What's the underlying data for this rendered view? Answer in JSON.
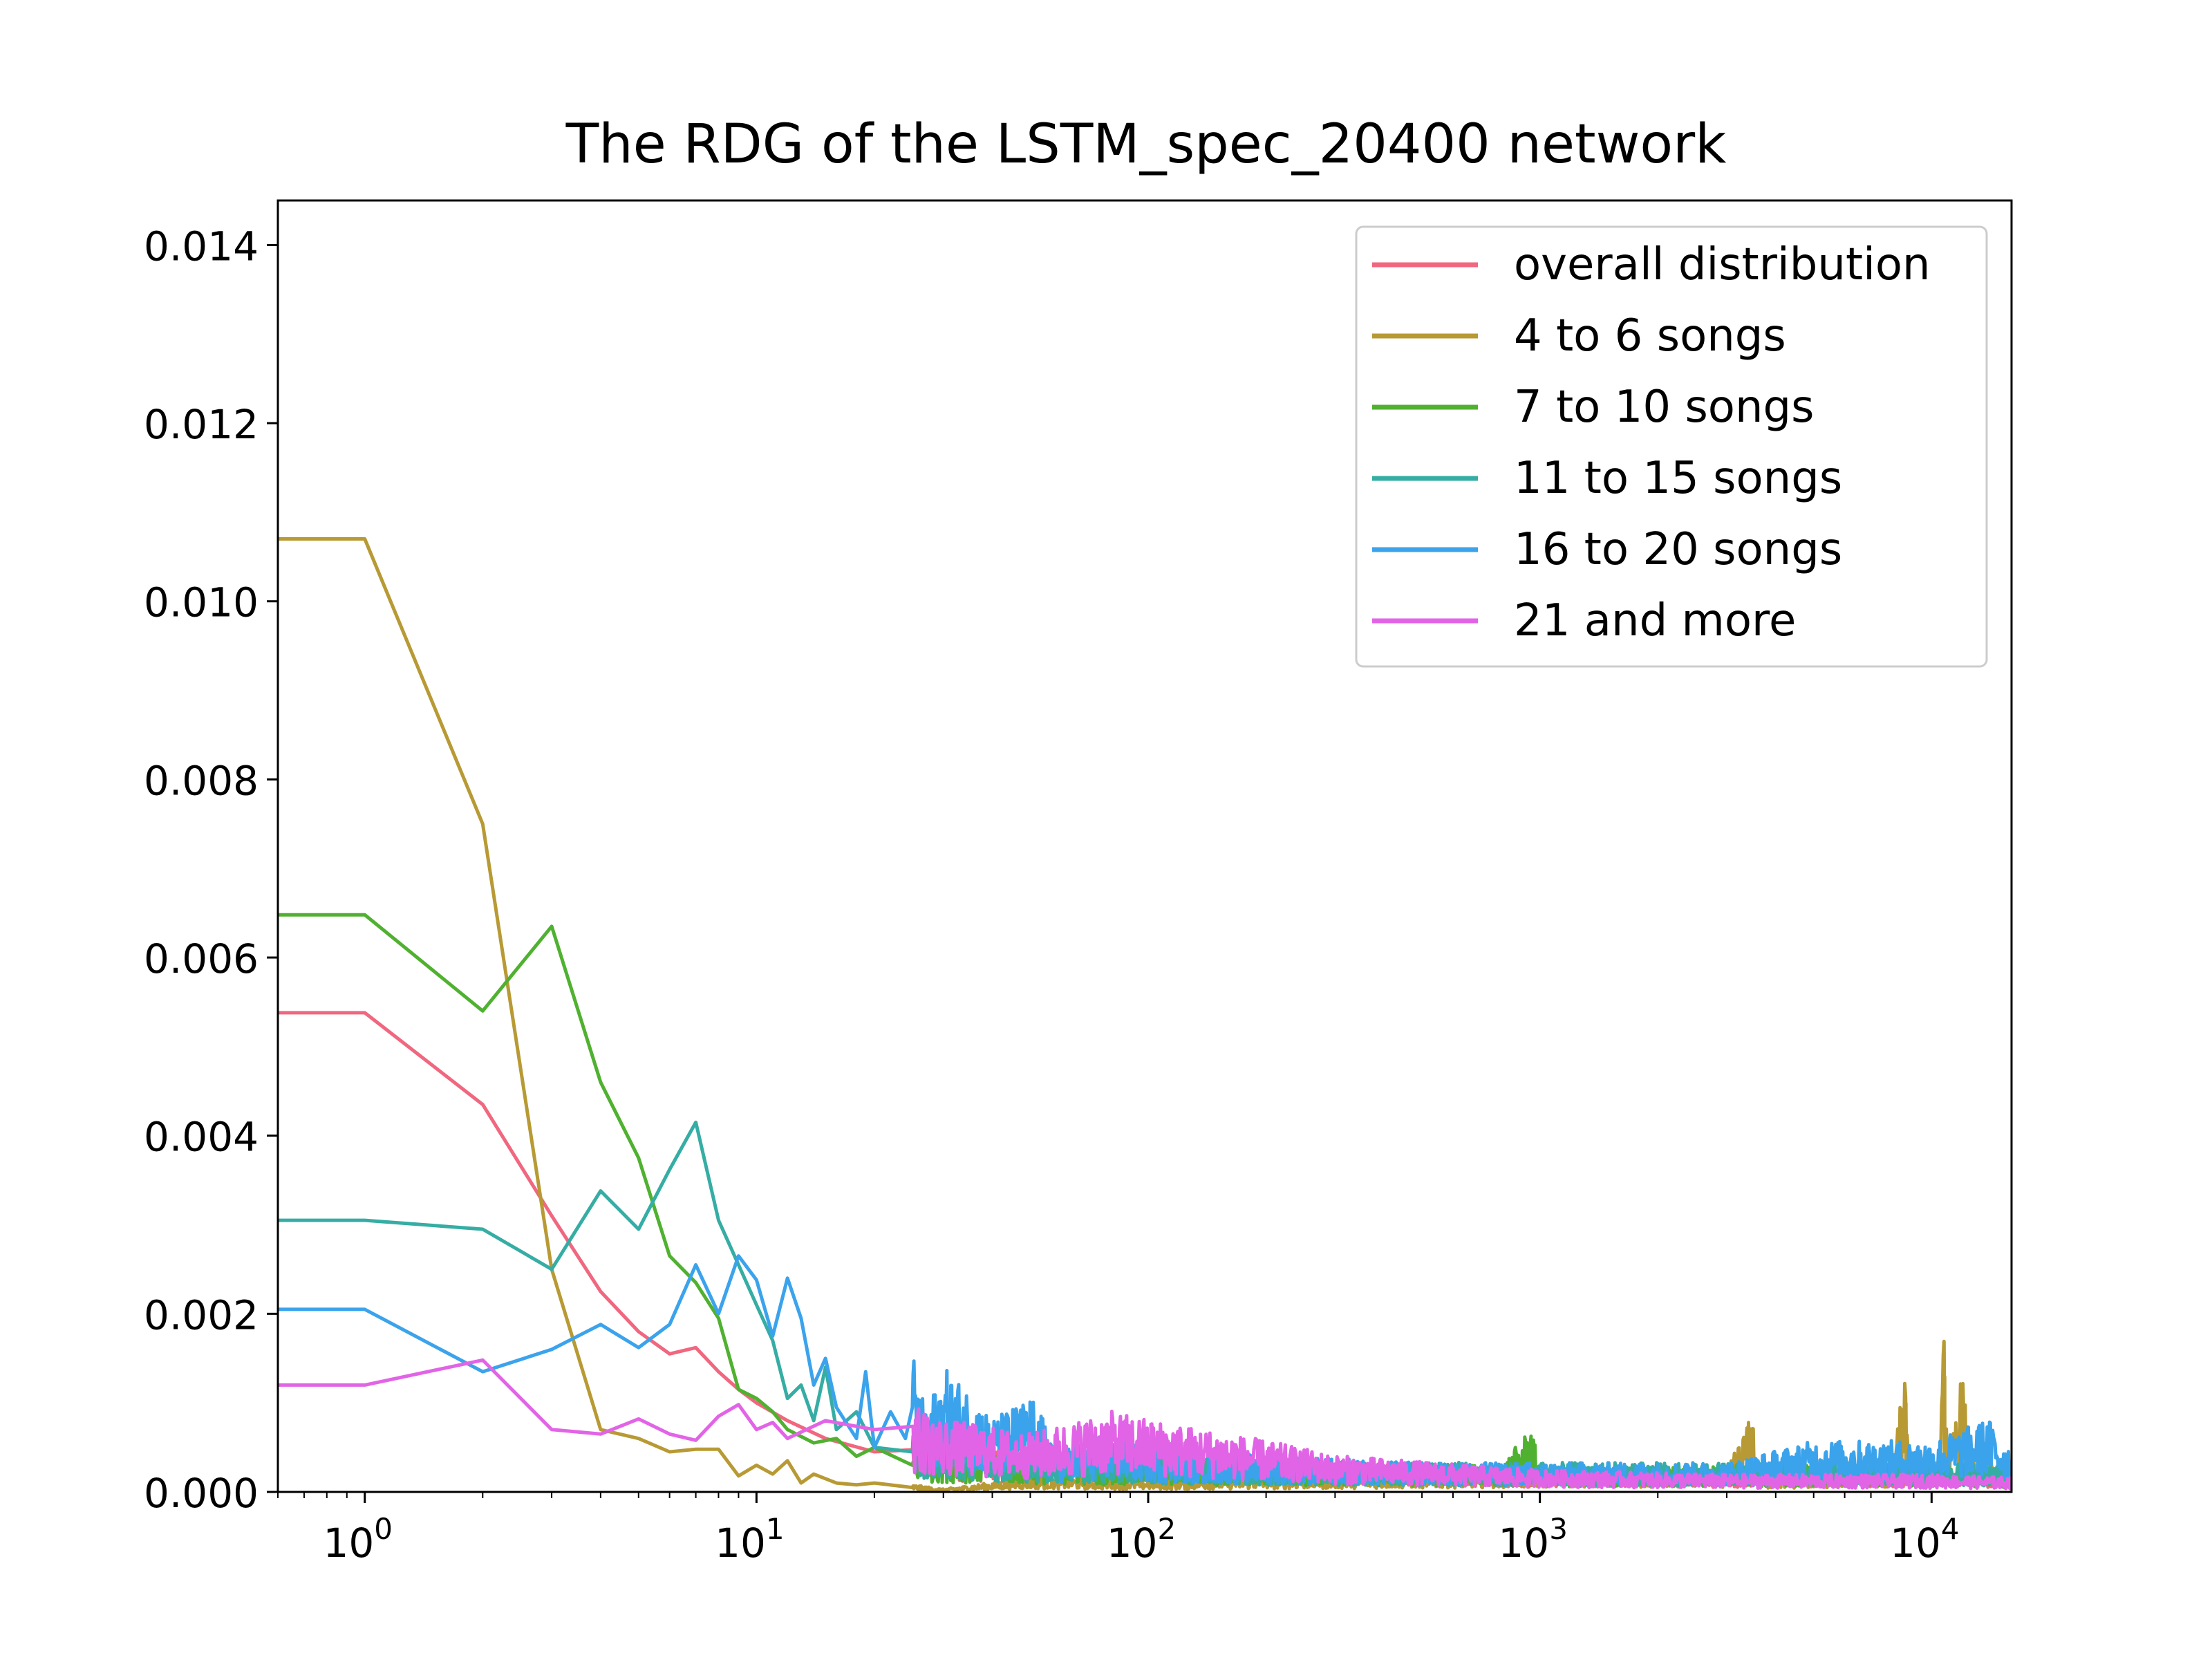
{
  "chart_data": {
    "type": "line",
    "title": "The RDG of the LSTM_spec_20400 network",
    "xlabel": "",
    "ylabel": "",
    "xscale": "log",
    "xlim": [
      0.6,
      16000
    ],
    "ylim": [
      0,
      0.0145
    ],
    "xticks": [
      {
        "value": 1,
        "base": "10",
        "exp": "0"
      },
      {
        "value": 10,
        "base": "10",
        "exp": "1"
      },
      {
        "value": 100,
        "base": "10",
        "exp": "2"
      },
      {
        "value": 1000,
        "base": "10",
        "exp": "3"
      },
      {
        "value": 10000,
        "base": "10",
        "exp": "4"
      }
    ],
    "yticks": [
      {
        "value": 0.0,
        "label": "0.000"
      },
      {
        "value": 0.002,
        "label": "0.002"
      },
      {
        "value": 0.004,
        "label": "0.004"
      },
      {
        "value": 0.006,
        "label": "0.006"
      },
      {
        "value": 0.008,
        "label": "0.008"
      },
      {
        "value": 0.01,
        "label": "0.010"
      },
      {
        "value": 0.012,
        "label": "0.012"
      },
      {
        "value": 0.014,
        "label": "0.014"
      }
    ],
    "grid": false,
    "legend_position": "top-right",
    "series": [
      {
        "name": "overall distribution",
        "color": "#f0677f",
        "points": [
          [
            0.6,
            0.00538
          ],
          [
            1,
            0.00538
          ],
          [
            2,
            0.00435
          ],
          [
            3,
            0.0031
          ],
          [
            4,
            0.00225
          ],
          [
            5,
            0.0018
          ],
          [
            6,
            0.00155
          ],
          [
            7,
            0.00162
          ],
          [
            8,
            0.00135
          ],
          [
            9,
            0.00115
          ],
          [
            10,
            0.001
          ],
          [
            12,
            0.0008
          ],
          [
            15,
            0.0006
          ],
          [
            20,
            0.00045
          ],
          [
            30,
            0.00035
          ],
          [
            50,
            0.0003
          ],
          [
            100,
            0.00025
          ],
          [
            300,
            0.0002
          ],
          [
            1000,
            0.00015
          ],
          [
            3000,
            0.00015
          ],
          [
            10000,
            0.00015
          ],
          [
            16000,
            0.00015
          ]
        ]
      },
      {
        "name": "4 to 6 songs",
        "color": "#b89a35",
        "points": [
          [
            0.6,
            0.0107
          ],
          [
            1,
            0.0107
          ],
          [
            2,
            0.0075
          ],
          [
            3,
            0.0025
          ],
          [
            4,
            0.0007
          ],
          [
            5,
            0.0006
          ],
          [
            6,
            0.00045
          ],
          [
            7,
            0.00048
          ],
          [
            8,
            0.00048
          ],
          [
            9,
            0.00018
          ],
          [
            10,
            0.0003
          ],
          [
            11,
            0.0002
          ],
          [
            12,
            0.00035
          ],
          [
            13,
            0.0001
          ],
          [
            14,
            0.0002
          ],
          [
            16,
            0.0001
          ],
          [
            18,
            8e-05
          ],
          [
            20,
            0.0001
          ],
          [
            25,
            5e-05
          ],
          [
            30,
            2e-05
          ],
          [
            50,
            0.0001
          ],
          [
            100,
            8e-05
          ],
          [
            500,
            0.00012
          ],
          [
            1000,
            0.00015
          ],
          [
            3000,
            0.00015
          ],
          [
            3500,
            0.00055
          ],
          [
            3600,
            0.0001
          ],
          [
            8000,
            0.00015
          ],
          [
            8600,
            0.001
          ],
          [
            8800,
            0.0002
          ],
          [
            10500,
            0.0002
          ],
          [
            10800,
            0.0013
          ],
          [
            11000,
            0.00015
          ],
          [
            12000,
            0.00085
          ],
          [
            12500,
            0.0002
          ],
          [
            16000,
            0.00015
          ]
        ]
      },
      {
        "name": "7 to 10 songs",
        "color": "#50b131",
        "points": [
          [
            0.6,
            0.00648
          ],
          [
            1,
            0.00648
          ],
          [
            2,
            0.0054
          ],
          [
            3,
            0.00635
          ],
          [
            4,
            0.0046
          ],
          [
            5,
            0.00375
          ],
          [
            6,
            0.00265
          ],
          [
            7,
            0.00235
          ],
          [
            8,
            0.00195
          ],
          [
            9,
            0.00115
          ],
          [
            10,
            0.00105
          ],
          [
            11,
            0.0009
          ],
          [
            12,
            0.0007
          ],
          [
            14,
            0.00055
          ],
          [
            16,
            0.0006
          ],
          [
            18,
            0.0004
          ],
          [
            20,
            0.0005
          ],
          [
            25,
            0.0003
          ],
          [
            30,
            0.0003
          ],
          [
            50,
            0.00025
          ],
          [
            100,
            0.00022
          ],
          [
            300,
            0.0002
          ],
          [
            800,
            0.00018
          ],
          [
            950,
            0.00045
          ],
          [
            1000,
            0.00015
          ],
          [
            3000,
            0.00018
          ],
          [
            10000,
            0.00018
          ],
          [
            16000,
            0.00015
          ]
        ]
      },
      {
        "name": "11 to 15 songs",
        "color": "#36ada4",
        "points": [
          [
            0.6,
            0.00305
          ],
          [
            1,
            0.00305
          ],
          [
            2,
            0.00295
          ],
          [
            3,
            0.0025
          ],
          [
            4,
            0.00338
          ],
          [
            5,
            0.00295
          ],
          [
            6,
            0.00362
          ],
          [
            7,
            0.00415
          ],
          [
            8,
            0.00305
          ],
          [
            9,
            0.00255
          ],
          [
            10,
            0.0021
          ],
          [
            11,
            0.0017
          ],
          [
            12,
            0.00105
          ],
          [
            13,
            0.0012
          ],
          [
            14,
            0.0008
          ],
          [
            15,
            0.0014
          ],
          [
            16,
            0.0007
          ],
          [
            18,
            0.0009
          ],
          [
            20,
            0.0005
          ],
          [
            25,
            0.00045
          ],
          [
            30,
            0.0004
          ],
          [
            50,
            0.0003
          ],
          [
            100,
            0.00025
          ],
          [
            300,
            0.0002
          ],
          [
            1000,
            0.0002
          ],
          [
            3000,
            0.0002
          ],
          [
            10000,
            0.0002
          ],
          [
            16000,
            0.00018
          ]
        ]
      },
      {
        "name": "16 to 20 songs",
        "color": "#3ba3ec",
        "points": [
          [
            0.6,
            0.00205
          ],
          [
            1,
            0.00205
          ],
          [
            2,
            0.00135
          ],
          [
            3,
            0.0016
          ],
          [
            4,
            0.00188
          ],
          [
            5,
            0.00162
          ],
          [
            6,
            0.00188
          ],
          [
            7,
            0.00255
          ],
          [
            8,
            0.002
          ],
          [
            9,
            0.00265
          ],
          [
            10,
            0.00238
          ],
          [
            11,
            0.00175
          ],
          [
            12,
            0.0024
          ],
          [
            13,
            0.00195
          ],
          [
            14,
            0.0012
          ],
          [
            15,
            0.0015
          ],
          [
            16,
            0.00095
          ],
          [
            18,
            0.0006
          ],
          [
            19,
            0.00135
          ],
          [
            20,
            0.0005
          ],
          [
            22,
            0.0009
          ],
          [
            24,
            0.0006
          ],
          [
            25,
            0.00095
          ],
          [
            27,
            0.00055
          ],
          [
            30,
            0.00085
          ],
          [
            35,
            0.0007
          ],
          [
            40,
            0.0005
          ],
          [
            50,
            0.00065
          ],
          [
            60,
            0.0003
          ],
          [
            80,
            0.0004
          ],
          [
            100,
            0.0003
          ],
          [
            200,
            0.00025
          ],
          [
            500,
            0.0002
          ],
          [
            1000,
            0.0002
          ],
          [
            3000,
            0.0002
          ],
          [
            5000,
            0.00035
          ],
          [
            10000,
            0.00035
          ],
          [
            14000,
            0.0005
          ],
          [
            16000,
            0.0003
          ]
        ]
      },
      {
        "name": "21 and more",
        "color": "#e264e6",
        "points": [
          [
            0.6,
            0.0012
          ],
          [
            1,
            0.0012
          ],
          [
            2,
            0.00148
          ],
          [
            3,
            0.0007
          ],
          [
            4,
            0.00065
          ],
          [
            5,
            0.00082
          ],
          [
            6,
            0.00065
          ],
          [
            7,
            0.00058
          ],
          [
            8,
            0.00085
          ],
          [
            9,
            0.00098
          ],
          [
            10,
            0.0007
          ],
          [
            11,
            0.00078
          ],
          [
            12,
            0.0006
          ],
          [
            15,
            0.0008
          ],
          [
            20,
            0.0007
          ],
          [
            30,
            0.0005
          ],
          [
            50,
            0.0004
          ],
          [
            80,
            0.00055
          ],
          [
            100,
            0.0005
          ],
          [
            200,
            0.00035
          ],
          [
            300,
            0.00025
          ],
          [
            1000,
            0.00015
          ],
          [
            3000,
            0.00012
          ],
          [
            10000,
            0.00012
          ],
          [
            16000,
            0.0001
          ]
        ]
      }
    ]
  }
}
